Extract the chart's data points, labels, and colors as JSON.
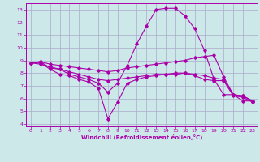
{
  "background_color": "#cce8e8",
  "grid_color": "#aaaacc",
  "line_color": "#aa00aa",
  "xlim": [
    -0.5,
    23.5
  ],
  "ylim": [
    3.8,
    13.5
  ],
  "xlabel": "Windchill (Refroidissement éolien,°C)",
  "xticks": [
    0,
    1,
    2,
    3,
    4,
    5,
    6,
    7,
    8,
    9,
    10,
    11,
    12,
    13,
    14,
    15,
    16,
    17,
    18,
    19,
    20,
    21,
    22,
    23
  ],
  "yticks": [
    4,
    5,
    6,
    7,
    8,
    9,
    10,
    11,
    12,
    13
  ],
  "series": [
    {
      "x": [
        0,
        1,
        2,
        3,
        4,
        5,
        6,
        7,
        8,
        9,
        10,
        11,
        12,
        13,
        14,
        15,
        16,
        17,
        18,
        19,
        20,
        21,
        22,
        23
      ],
      "y": [
        8.8,
        8.9,
        8.4,
        8.3,
        7.9,
        7.7,
        7.5,
        7.2,
        6.5,
        7.2,
        8.6,
        10.3,
        11.7,
        13.0,
        13.1,
        13.1,
        12.5,
        11.5,
        9.8,
        7.5,
        6.3,
        6.3,
        5.8,
        5.8
      ]
    },
    {
      "x": [
        0,
        1,
        2,
        3,
        4,
        5,
        6,
        7,
        8,
        9,
        10,
        11,
        12,
        13,
        14,
        15,
        16,
        17,
        18,
        19,
        20,
        21,
        22,
        23
      ],
      "y": [
        8.8,
        8.9,
        8.7,
        8.6,
        8.5,
        8.4,
        8.3,
        8.2,
        8.1,
        8.2,
        8.4,
        8.5,
        8.6,
        8.7,
        8.8,
        8.9,
        9.0,
        9.2,
        9.3,
        9.4,
        7.7,
        6.3,
        6.2,
        5.8
      ]
    },
    {
      "x": [
        0,
        1,
        2,
        3,
        4,
        5,
        6,
        7,
        8,
        9,
        10,
        11,
        12,
        13,
        14,
        15,
        16,
        17,
        18,
        19,
        20,
        21,
        22,
        23
      ],
      "y": [
        8.8,
        8.7,
        8.5,
        8.3,
        8.1,
        7.9,
        7.7,
        7.5,
        7.4,
        7.5,
        7.6,
        7.7,
        7.8,
        7.9,
        7.9,
        8.0,
        8.0,
        7.9,
        7.8,
        7.6,
        7.5,
        6.3,
        6.2,
        5.8
      ]
    },
    {
      "x": [
        0,
        1,
        2,
        3,
        4,
        5,
        6,
        7,
        8,
        9,
        10,
        11,
        12,
        13,
        14,
        15,
        16,
        17,
        18,
        19,
        20,
        21,
        22,
        23
      ],
      "y": [
        8.8,
        8.8,
        8.3,
        7.9,
        7.8,
        7.5,
        7.3,
        6.8,
        4.4,
        5.7,
        7.2,
        7.5,
        7.7,
        7.8,
        7.9,
        7.9,
        8.0,
        7.8,
        7.5,
        7.4,
        7.4,
        6.2,
        6.1,
        5.7
      ]
    }
  ]
}
